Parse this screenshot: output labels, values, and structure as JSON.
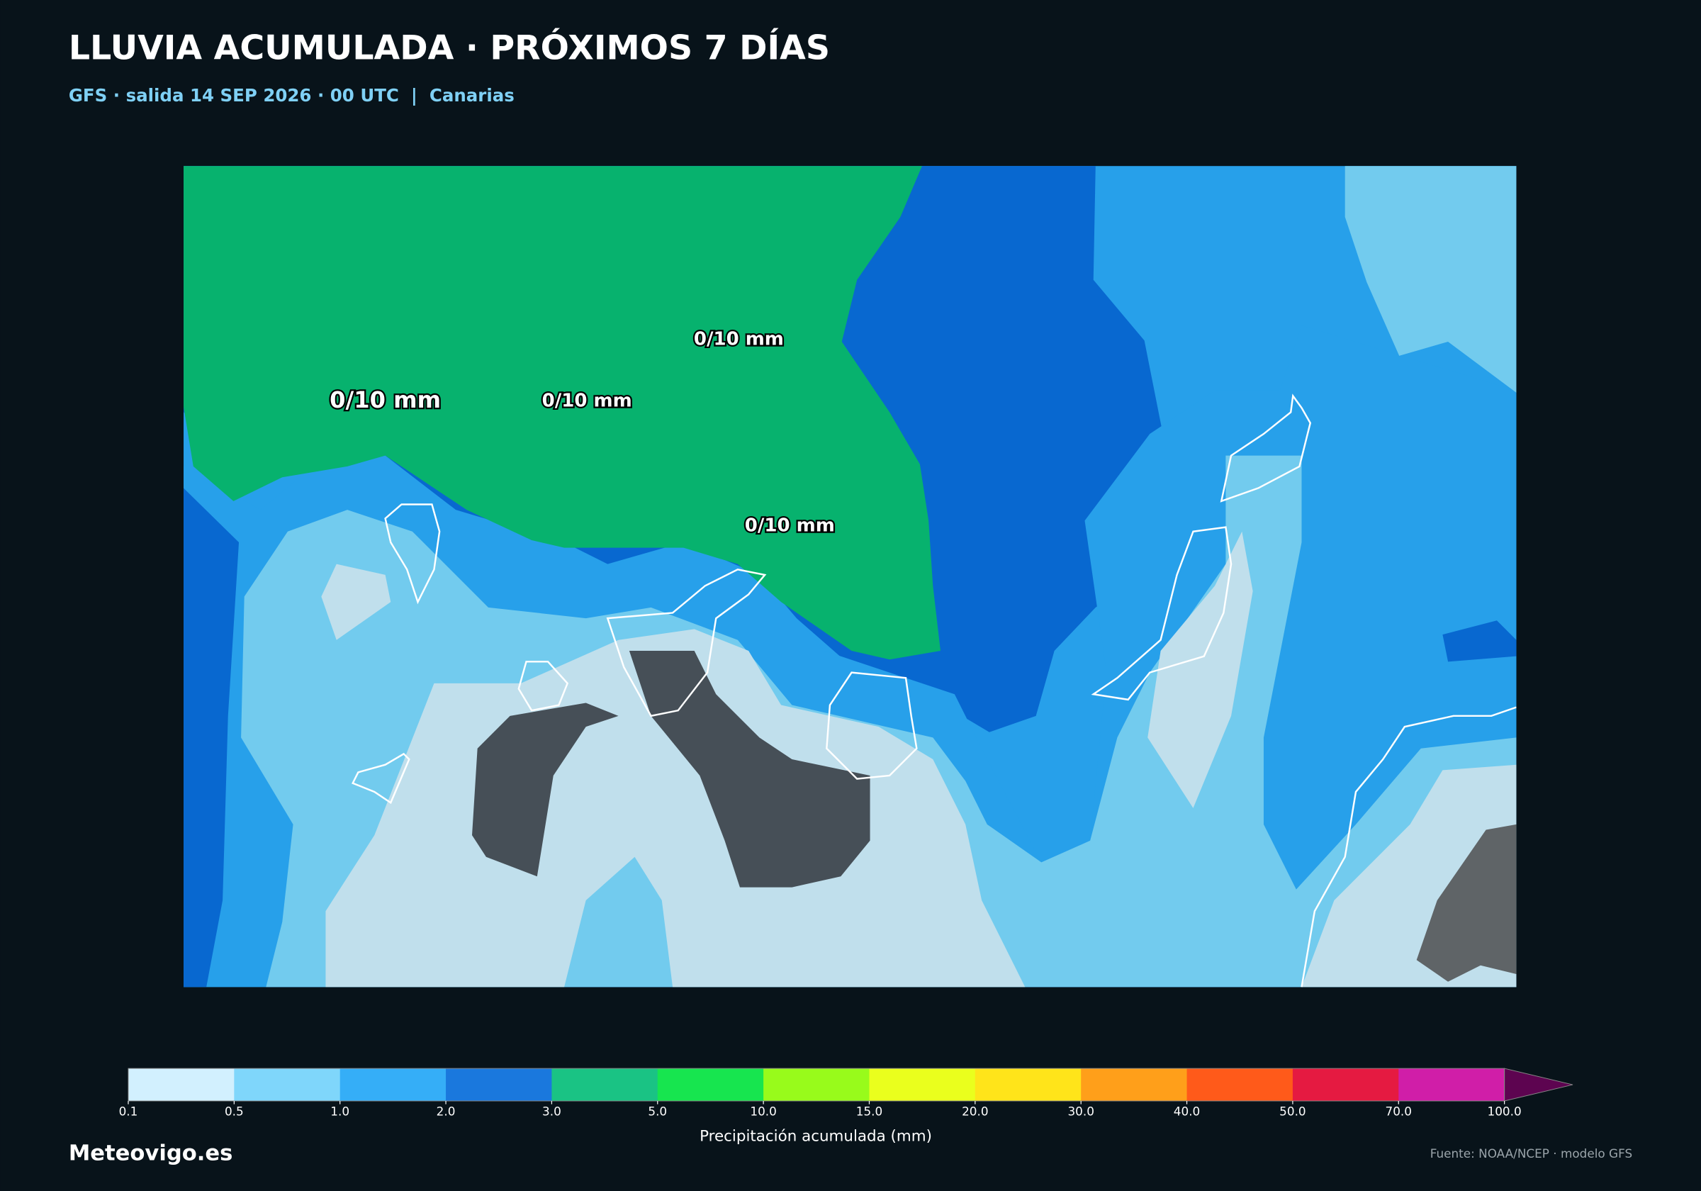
{
  "header": {
    "title": "LLUVIA ACUMULADA · PRÓXIMOS 7 DÍAS",
    "subtitle": "GFS · salida 14 SEP 2026 · 00 UTC  |  Canarias"
  },
  "map": {
    "labels": [
      "0/10 mm",
      "0/10 mm",
      "0/10 mm",
      "0/10 mm"
    ]
  },
  "colorbar": {
    "ticks": [
      0.1,
      0.5,
      {
        "value": 1,
        "label": "1.0"
      },
      {
        "value": 2,
        "label": "2.0"
      },
      {
        "value": 3,
        "label": "3.0"
      },
      {
        "value": 5,
        "label": "5.0"
      },
      {
        "value": 10,
        "label": "10.0"
      },
      {
        "value": 15,
        "label": "15.0"
      },
      {
        "value": 20,
        "label": "20.0"
      },
      {
        "value": 30,
        "label": "30.0"
      },
      {
        "value": 40,
        "label": "40.0"
      },
      {
        "value": 50,
        "label": "50.0"
      },
      {
        "value": 70,
        "label": "70.0"
      },
      {
        "value": 100,
        "label": "100.0"
      }
    ],
    "colors": [
      "#d2f0fe",
      "#7fd6fb",
      "#35aef7",
      "#1a78dd",
      "#1ac384",
      "#17e54f",
      "#98fb1b",
      "#eaff1d",
      "#ffe41a",
      "#ff9f1a",
      "#ff5a1a",
      "#e51a41",
      "#d01ea8"
    ],
    "overflow_color": "#5d0450",
    "label": "Precipitación acumulada (mm)"
  },
  "footer": {
    "brand": "Meteovigo.es",
    "source": "Fuente: NOAA/NCEP · modelo GFS"
  }
}
